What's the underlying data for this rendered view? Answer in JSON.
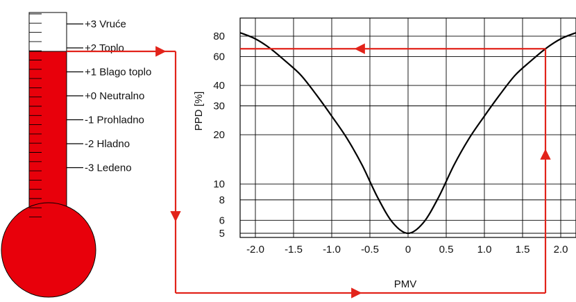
{
  "colors": {
    "mercury": "#e8000b",
    "arrow": "#e2231a",
    "curve": "#000000",
    "grid": "#000000"
  },
  "thermometer": {
    "level_pmv": 2,
    "scale": [
      {
        "value": 3,
        "label": "+3 Vruće"
      },
      {
        "value": 2,
        "label": "+2 Toplo"
      },
      {
        "value": 1,
        "label": "+1 Blago toplo"
      },
      {
        "value": 0,
        "label": "+0 Neutralno"
      },
      {
        "value": -1,
        "label": "-1 Prohladno"
      },
      {
        "value": -2,
        "label": "-2 Hladno"
      },
      {
        "value": -3,
        "label": "-3 Ledeno"
      }
    ]
  },
  "chart_data": {
    "type": "line",
    "xlabel": "PMV",
    "ylabel": "PPD [%]",
    "xlim": [
      -2.2,
      2.2
    ],
    "ylim": [
      5,
      90
    ],
    "yscale": "log",
    "grid": true,
    "x_ticks": [
      -2.0,
      -1.5,
      -1.0,
      -0.5,
      0,
      0.5,
      1.0,
      1.5,
      2.0
    ],
    "x_tick_labels": [
      "-2.0",
      "-1.5",
      "-1.0",
      "-0.5",
      "0",
      "0.5",
      "1.0",
      "1.5",
      "2.0"
    ],
    "y_ticks": [
      5,
      6,
      8,
      10,
      20,
      30,
      40,
      60,
      80
    ],
    "y_tick_labels": [
      "5",
      "6",
      "8",
      "10",
      "20",
      "30",
      "40",
      "60",
      "80"
    ],
    "series": [
      {
        "x": [
          -2.2,
          -2.0,
          -1.8,
          -1.6,
          -1.4,
          -1.2,
          -1.0,
          -0.8,
          -0.6,
          -0.4,
          -0.2,
          0,
          0.2,
          0.4,
          0.6,
          0.8,
          1.0,
          1.2,
          1.4,
          1.6,
          1.8,
          2.0,
          2.2
        ],
        "y": [
          84,
          77,
          67,
          56,
          46,
          35,
          26,
          19,
          13,
          8.3,
          5.8,
          5.0,
          5.8,
          8.3,
          13,
          19,
          26,
          35,
          46,
          56,
          67,
          77,
          84
        ]
      }
    ],
    "annotation": {
      "pmv": 1.8,
      "ppd": 67
    }
  }
}
